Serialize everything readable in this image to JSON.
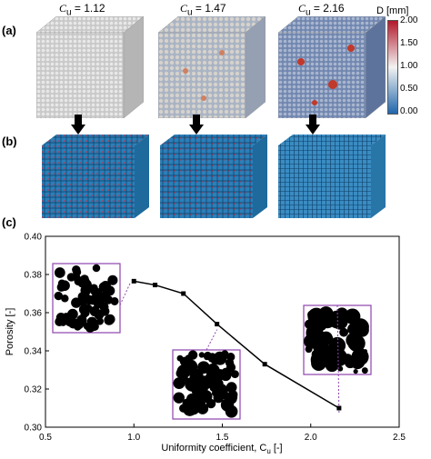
{
  "panels": {
    "a_label": "(a)",
    "b_label": "(b)",
    "c_label": "(c)"
  },
  "cubes": [
    {
      "cu_prefix": "C",
      "cu_sub": "u",
      "cu_value": " = 1.12"
    },
    {
      "cu_prefix": "C",
      "cu_sub": "u",
      "cu_value": " = 1.47"
    },
    {
      "cu_prefix": "C",
      "cu_sub": "u",
      "cu_value": " = 2.16"
    }
  ],
  "colorbar": {
    "title": "D [mm]",
    "ticks": [
      "2.00",
      "1.50",
      "1.00",
      "0.50",
      "0.00"
    ],
    "colors": {
      "top": "#b2182b",
      "mid": "#f2f2f2",
      "bottom": "#2166ac"
    }
  },
  "chart_data": {
    "type": "line",
    "x": [
      1.0,
      1.12,
      1.28,
      1.47,
      1.74,
      2.16
    ],
    "y": [
      0.3765,
      0.3745,
      0.37,
      0.354,
      0.333,
      0.31
    ],
    "xlabel": "Uniformity coefficient, C",
    "xlabel_sub": "u",
    "xlabel_suffix": " [-]",
    "ylabel": "Porosity [-]",
    "xlim": [
      0.5,
      2.5
    ],
    "ylim": [
      0.3,
      0.4
    ],
    "xticks": [
      "0.5",
      "1.0",
      "1.5",
      "2.0",
      "2.5"
    ],
    "yticks": [
      "0.30",
      "0.32",
      "0.34",
      "0.36",
      "0.38",
      "0.40"
    ],
    "grid": false,
    "marker": "square",
    "line_color": "#000000",
    "inset_border_color": "#8e44ad"
  }
}
